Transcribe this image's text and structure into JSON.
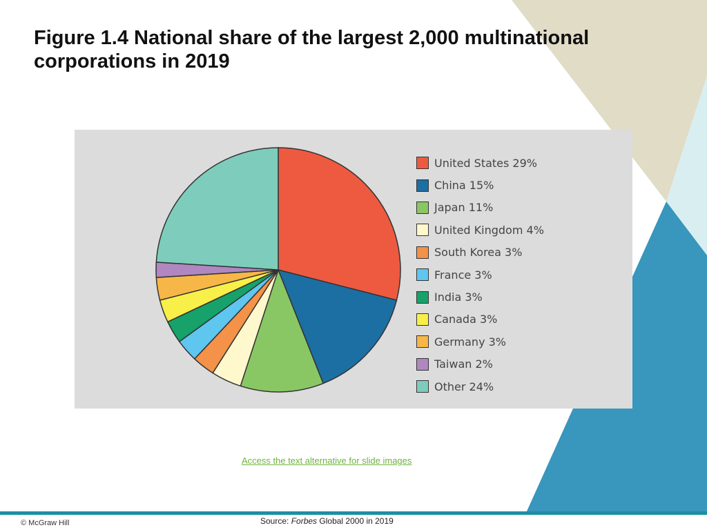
{
  "slide": {
    "title": "Figure 1.4 National share of the largest 2,000 multinational corporations in 2019",
    "alt_text_link": "Access the text alternative for slide images",
    "copyright": "© McGraw Hill",
    "source_prefix": "Source: ",
    "source_publication": "Forbes",
    "source_suffix": " Global 2000 in 2019"
  },
  "theme_colors": {
    "background_tan": "#e0dcc6",
    "background_light_blue": "#d9eef0",
    "background_blue": "#3996bd",
    "footer_rule": "#1d8fa3",
    "chart_panel": "#dcdcdc"
  },
  "chart_data": {
    "type": "pie",
    "title": "",
    "start_angle_deg": 0,
    "direction": "clockwise",
    "legend_position": "right",
    "slices": [
      {
        "category": "United States",
        "value": 29,
        "legend_label": "United States 29%",
        "color": "#ee5a40"
      },
      {
        "category": "China",
        "value": 15,
        "legend_label": "China 15%",
        "color": "#1b6fa3"
      },
      {
        "category": "Japan",
        "value": 11,
        "legend_label": "Japan 11%",
        "color": "#89c765"
      },
      {
        "category": "United Kingdom",
        "value": 4,
        "legend_label": "United Kingdom 4%",
        "color": "#fff8cc"
      },
      {
        "category": "South Korea",
        "value": 3,
        "legend_label": "South Korea 3%",
        "color": "#f39248"
      },
      {
        "category": "France",
        "value": 3,
        "legend_label": "France 3%",
        "color": "#5ec6ef"
      },
      {
        "category": "India",
        "value": 3,
        "legend_label": "India 3%",
        "color": "#16a26a"
      },
      {
        "category": "Canada",
        "value": 3,
        "legend_label": "Canada 3%",
        "color": "#f8ef48"
      },
      {
        "category": "Germany",
        "value": 3,
        "legend_label": "Germany 3%",
        "color": "#f7b748"
      },
      {
        "category": "Taiwan",
        "value": 2,
        "legend_label": "Taiwan 2%",
        "color": "#b087c0"
      },
      {
        "category": "Other",
        "value": 24,
        "legend_label": "Other 24%",
        "color": "#7ecdbc"
      }
    ]
  }
}
